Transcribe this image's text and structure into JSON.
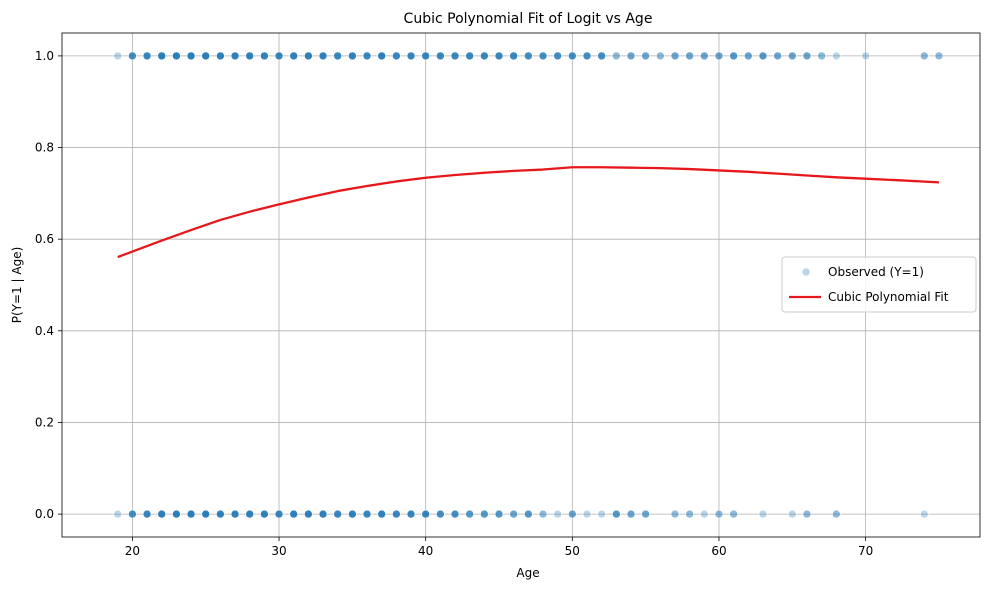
{
  "chart_data": {
    "type": "scatter",
    "title": "Cubic Polynomial Fit of Logit vs Age",
    "xlabel": "Age",
    "ylabel": "P(Y=1 | Age)",
    "xlim": [
      15.2,
      77.8
    ],
    "ylim": [
      -0.05,
      1.05
    ],
    "xticks": [
      20,
      30,
      40,
      50,
      60,
      70
    ],
    "yticks": [
      0.0,
      0.2,
      0.4,
      0.6,
      0.8,
      1.0
    ],
    "xtick_labels": [
      "20",
      "30",
      "40",
      "50",
      "60",
      "70"
    ],
    "ytick_labels": [
      "0.0",
      "0.2",
      "0.4",
      "0.6",
      "0.8",
      "1.0"
    ],
    "grid": true,
    "legend_position": "center-right",
    "series": [
      {
        "name": "Observed (Y=1)",
        "type": "scatter",
        "color": "#1f77b4",
        "points": [
          {
            "x": 19,
            "y": 1,
            "n": 1
          },
          {
            "x": 20,
            "y": 1,
            "n": 5
          },
          {
            "x": 21,
            "y": 1,
            "n": 6
          },
          {
            "x": 22,
            "y": 1,
            "n": 8
          },
          {
            "x": 23,
            "y": 1,
            "n": 8
          },
          {
            "x": 24,
            "y": 1,
            "n": 8
          },
          {
            "x": 25,
            "y": 1,
            "n": 8
          },
          {
            "x": 26,
            "y": 1,
            "n": 7
          },
          {
            "x": 27,
            "y": 1,
            "n": 7
          },
          {
            "x": 28,
            "y": 1,
            "n": 7
          },
          {
            "x": 29,
            "y": 1,
            "n": 7
          },
          {
            "x": 30,
            "y": 1,
            "n": 6
          },
          {
            "x": 31,
            "y": 1,
            "n": 7
          },
          {
            "x": 32,
            "y": 1,
            "n": 7
          },
          {
            "x": 33,
            "y": 1,
            "n": 7
          },
          {
            "x": 34,
            "y": 1,
            "n": 6
          },
          {
            "x": 35,
            "y": 1,
            "n": 7
          },
          {
            "x": 36,
            "y": 1,
            "n": 6
          },
          {
            "x": 37,
            "y": 1,
            "n": 7
          },
          {
            "x": 38,
            "y": 1,
            "n": 6
          },
          {
            "x": 39,
            "y": 1,
            "n": 6
          },
          {
            "x": 40,
            "y": 1,
            "n": 6
          },
          {
            "x": 41,
            "y": 1,
            "n": 6
          },
          {
            "x": 42,
            "y": 1,
            "n": 6
          },
          {
            "x": 43,
            "y": 1,
            "n": 6
          },
          {
            "x": 44,
            "y": 1,
            "n": 6
          },
          {
            "x": 45,
            "y": 1,
            "n": 6
          },
          {
            "x": 46,
            "y": 1,
            "n": 6
          },
          {
            "x": 47,
            "y": 1,
            "n": 5
          },
          {
            "x": 48,
            "y": 1,
            "n": 5
          },
          {
            "x": 49,
            "y": 1,
            "n": 5
          },
          {
            "x": 50,
            "y": 1,
            "n": 5
          },
          {
            "x": 51,
            "y": 1,
            "n": 5
          },
          {
            "x": 52,
            "y": 1,
            "n": 5
          },
          {
            "x": 53,
            "y": 1,
            "n": 2
          },
          {
            "x": 54,
            "y": 1,
            "n": 3
          },
          {
            "x": 55,
            "y": 1,
            "n": 3
          },
          {
            "x": 56,
            "y": 1,
            "n": 2
          },
          {
            "x": 57,
            "y": 1,
            "n": 3
          },
          {
            "x": 58,
            "y": 1,
            "n": 3
          },
          {
            "x": 59,
            "y": 1,
            "n": 3
          },
          {
            "x": 60,
            "y": 1,
            "n": 3
          },
          {
            "x": 61,
            "y": 1,
            "n": 4
          },
          {
            "x": 62,
            "y": 1,
            "n": 3
          },
          {
            "x": 63,
            "y": 1,
            "n": 4
          },
          {
            "x": 64,
            "y": 1,
            "n": 3
          },
          {
            "x": 65,
            "y": 1,
            "n": 3
          },
          {
            "x": 66,
            "y": 1,
            "n": 3
          },
          {
            "x": 67,
            "y": 1,
            "n": 2
          },
          {
            "x": 68,
            "y": 1,
            "n": 1
          },
          {
            "x": 70,
            "y": 1,
            "n": 1
          },
          {
            "x": 74,
            "y": 1,
            "n": 2
          },
          {
            "x": 75,
            "y": 1,
            "n": 2
          },
          {
            "x": 19,
            "y": 0,
            "n": 1
          },
          {
            "x": 20,
            "y": 0,
            "n": 5
          },
          {
            "x": 21,
            "y": 0,
            "n": 6
          },
          {
            "x": 22,
            "y": 0,
            "n": 8
          },
          {
            "x": 23,
            "y": 0,
            "n": 8
          },
          {
            "x": 24,
            "y": 0,
            "n": 8
          },
          {
            "x": 25,
            "y": 0,
            "n": 8
          },
          {
            "x": 26,
            "y": 0,
            "n": 7
          },
          {
            "x": 27,
            "y": 0,
            "n": 7
          },
          {
            "x": 28,
            "y": 0,
            "n": 7
          },
          {
            "x": 29,
            "y": 0,
            "n": 7
          },
          {
            "x": 30,
            "y": 0,
            "n": 6
          },
          {
            "x": 31,
            "y": 0,
            "n": 7
          },
          {
            "x": 32,
            "y": 0,
            "n": 7
          },
          {
            "x": 33,
            "y": 0,
            "n": 7
          },
          {
            "x": 34,
            "y": 0,
            "n": 6
          },
          {
            "x": 35,
            "y": 0,
            "n": 7
          },
          {
            "x": 36,
            "y": 0,
            "n": 6
          },
          {
            "x": 37,
            "y": 0,
            "n": 7
          },
          {
            "x": 38,
            "y": 0,
            "n": 6
          },
          {
            "x": 39,
            "y": 0,
            "n": 6
          },
          {
            "x": 40,
            "y": 0,
            "n": 6
          },
          {
            "x": 41,
            "y": 0,
            "n": 5
          },
          {
            "x": 42,
            "y": 0,
            "n": 5
          },
          {
            "x": 43,
            "y": 0,
            "n": 4
          },
          {
            "x": 44,
            "y": 0,
            "n": 4
          },
          {
            "x": 45,
            "y": 0,
            "n": 4
          },
          {
            "x": 46,
            "y": 0,
            "n": 3
          },
          {
            "x": 47,
            "y": 0,
            "n": 4
          },
          {
            "x": 48,
            "y": 0,
            "n": 2
          },
          {
            "x": 49,
            "y": 0,
            "n": 1
          },
          {
            "x": 50,
            "y": 0,
            "n": 3
          },
          {
            "x": 51,
            "y": 0,
            "n": 1
          },
          {
            "x": 52,
            "y": 0,
            "n": 1
          },
          {
            "x": 53,
            "y": 0,
            "n": 4
          },
          {
            "x": 54,
            "y": 0,
            "n": 3
          },
          {
            "x": 55,
            "y": 0,
            "n": 3
          },
          {
            "x": 57,
            "y": 0,
            "n": 2
          },
          {
            "x": 58,
            "y": 0,
            "n": 2
          },
          {
            "x": 59,
            "y": 0,
            "n": 1
          },
          {
            "x": 60,
            "y": 0,
            "n": 2
          },
          {
            "x": 61,
            "y": 0,
            "n": 2
          },
          {
            "x": 63,
            "y": 0,
            "n": 1
          },
          {
            "x": 65,
            "y": 0,
            "n": 1
          },
          {
            "x": 66,
            "y": 0,
            "n": 2
          },
          {
            "x": 68,
            "y": 0,
            "n": 2
          },
          {
            "x": 74,
            "y": 0,
            "n": 1
          }
        ]
      },
      {
        "name": "Cubic Polynomial Fit",
        "type": "line",
        "color": "#e8171b",
        "x": [
          19,
          20,
          22,
          24,
          26,
          28,
          30,
          32,
          34,
          36,
          38,
          40,
          42,
          44,
          46,
          48,
          50,
          52,
          54,
          56,
          58,
          60,
          62,
          64,
          66,
          68,
          70,
          72,
          75
        ],
        "y": [
          0.561,
          0.573,
          0.597,
          0.62,
          0.642,
          0.66,
          0.676,
          0.691,
          0.705,
          0.716,
          0.726,
          0.734,
          0.74,
          0.745,
          0.749,
          0.752,
          0.757,
          0.757,
          0.756,
          0.755,
          0.753,
          0.75,
          0.747,
          0.743,
          0.739,
          0.735,
          0.732,
          0.729,
          0.724
        ]
      }
    ]
  }
}
